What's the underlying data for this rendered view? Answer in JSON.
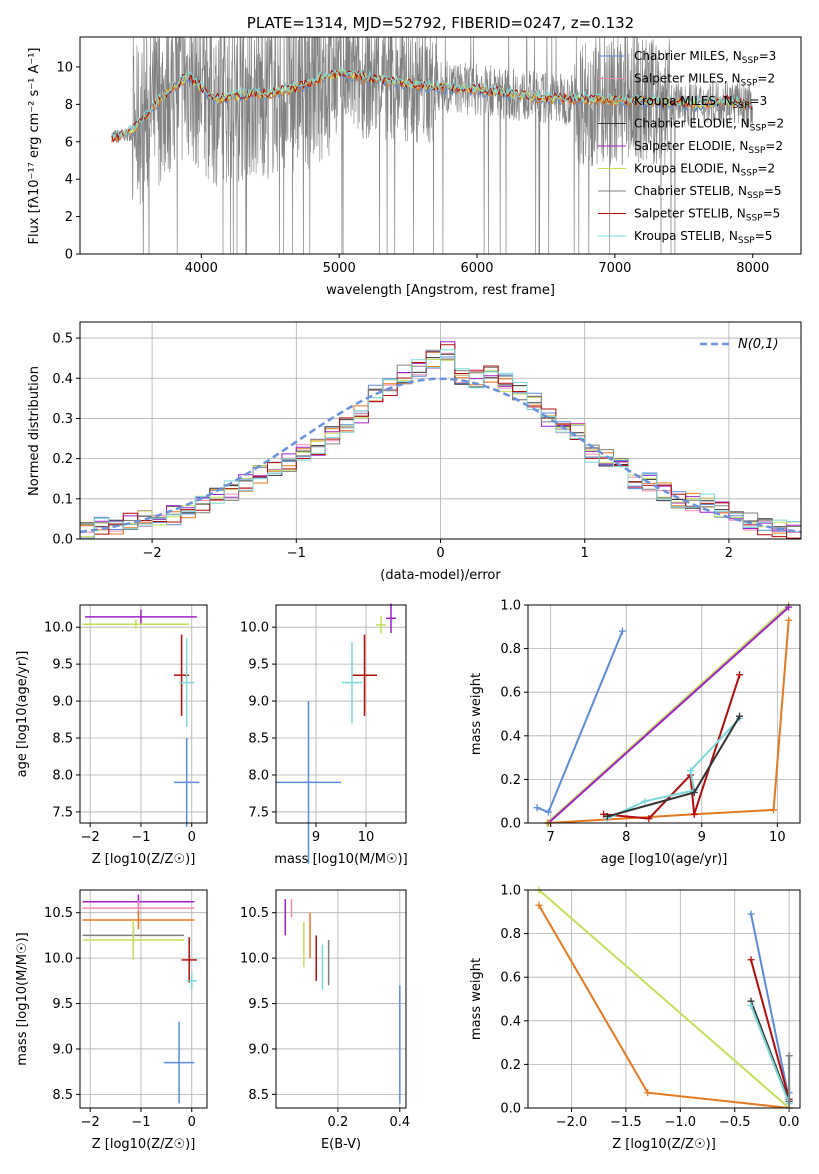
{
  "colors": {
    "chabrier_miles": "#5b8bd9",
    "salpeter_miles": "#f28bb4",
    "kroupa_miles": "#e6781e",
    "chabrier_elodie": "#333333",
    "salpeter_elodie": "#a020c8",
    "kroupa_elodie": "#c2e05a",
    "chabrier_stelib": "#808080",
    "salpeter_stelib": "#b20c0c",
    "kroupa_stelib": "#7ad8d8",
    "normal": "#6a92dd"
  },
  "legend_labels": [
    {
      "label": "Chabrier MILES, N",
      "nsub": "SSP",
      "nval": "=3",
      "color_key": "chabrier_miles"
    },
    {
      "label": "Salpeter MILES, N",
      "nsub": "SSP",
      "nval": "=2",
      "color_key": "salpeter_miles"
    },
    {
      "label": "Kroupa MILES, N",
      "nsub": "SSP",
      "nval": "=3",
      "color_key": "kroupa_miles"
    },
    {
      "label": "Chabrier ELODIE, N",
      "nsub": "SSP",
      "nval": "=2",
      "color_key": "chabrier_elodie"
    },
    {
      "label": "Salpeter ELODIE, N",
      "nsub": "SSP",
      "nval": "=2",
      "color_key": "salpeter_elodie"
    },
    {
      "label": "Kroupa ELODIE, N",
      "nsub": "SSP",
      "nval": "=2",
      "color_key": "kroupa_elodie"
    },
    {
      "label": "Chabrier STELIB, N",
      "nsub": "SSP",
      "nval": "=5",
      "color_key": "chabrier_stelib"
    },
    {
      "label": "Salpeter STELIB, N",
      "nsub": "SSP",
      "nval": "=5",
      "color_key": "salpeter_stelib"
    },
    {
      "label": "Kroupa STELIB, N",
      "nsub": "SSP",
      "nval": "=5",
      "color_key": "kroupa_stelib"
    }
  ],
  "chart_data": [
    {
      "type": "line",
      "title": "PLATE=1314, MJD=52792, FIBERID=0247, z=0.132",
      "xlabel": "wavelength [Angstrom, rest frame]",
      "ylabel": "Flux [fλ10⁻¹⁷ erg cm⁻² s⁻¹ A⁻¹]",
      "xlim": [
        3120,
        8350
      ],
      "ylim": [
        0,
        11.6
      ],
      "xticks": [
        4000,
        5000,
        6000,
        7000,
        8000
      ],
      "yticks": [
        0,
        2,
        4,
        6,
        8,
        10
      ],
      "legend_position": "upper right",
      "grid": false,
      "series": [
        {
          "name": "data",
          "color_key": "chabrier_stelib",
          "x": [
            3350,
            3500,
            3700,
            3900,
            4100,
            4300,
            4500,
            4700,
            4900,
            5000,
            5200,
            5400,
            5600,
            5800,
            6000,
            6200,
            6400,
            6600,
            6800,
            7000,
            7200,
            7400,
            7600,
            7800,
            8000
          ],
          "y": [
            6.3,
            6.4,
            8.2,
            9.4,
            8.1,
            8.4,
            8.5,
            8.8,
            9.4,
            9.6,
            9.3,
            9.2,
            9.0,
            8.9,
            8.8,
            8.6,
            8.4,
            8.3,
            8.2,
            8.2,
            8.2,
            8.0,
            8.0,
            8.2,
            7.9
          ]
        },
        {
          "name": "model",
          "color_key": "kroupa_stelib",
          "x": [
            3350,
            3500,
            3700,
            3900,
            4100,
            4300,
            4500,
            4700,
            4900,
            5000,
            5200,
            5400,
            5600,
            5800,
            6000,
            6200,
            6400,
            6600,
            6800,
            7000,
            7200,
            7400,
            7600,
            7800,
            8000
          ],
          "y": [
            6.2,
            6.6,
            8.3,
            9.5,
            8.3,
            8.5,
            8.6,
            8.9,
            9.5,
            9.7,
            9.4,
            9.2,
            9.0,
            8.9,
            8.8,
            8.6,
            8.4,
            8.3,
            8.3,
            8.2,
            8.2,
            8.1,
            8.0,
            8.2,
            7.9
          ]
        }
      ]
    },
    {
      "type": "line",
      "xlabel": "(data-model)/error",
      "ylabel": "Normed distribution",
      "xlim": [
        -2.5,
        2.5
      ],
      "ylim": [
        0,
        0.54
      ],
      "xticks": [
        -2,
        -1,
        0,
        1,
        2
      ],
      "yticks": [
        0.0,
        0.1,
        0.2,
        0.3,
        0.4,
        0.5
      ],
      "legend_position": "upper right",
      "legend_label": "N(0,1)",
      "grid": true,
      "bins": [
        -2.5,
        -2.4,
        -2.3,
        -2.2,
        -2.1,
        -2.0,
        -1.9,
        -1.8,
        -1.7,
        -1.6,
        -1.5,
        -1.4,
        -1.3,
        -1.2,
        -1.1,
        -1.0,
        -0.9,
        -0.8,
        -0.7,
        -0.6,
        -0.5,
        -0.4,
        -0.3,
        -0.2,
        -0.1,
        0.0,
        0.1,
        0.2,
        0.3,
        0.4,
        0.5,
        0.6,
        0.7,
        0.8,
        0.9,
        1.0,
        1.1,
        1.2,
        1.3,
        1.4,
        1.5,
        1.6,
        1.7,
        1.8,
        1.9,
        2.0,
        2.1,
        2.2,
        2.3,
        2.4
      ],
      "hist_base": [
        0.02,
        0.03,
        0.03,
        0.04,
        0.05,
        0.05,
        0.06,
        0.07,
        0.09,
        0.11,
        0.12,
        0.14,
        0.16,
        0.17,
        0.19,
        0.21,
        0.23,
        0.26,
        0.28,
        0.31,
        0.36,
        0.38,
        0.41,
        0.43,
        0.45,
        0.47,
        0.41,
        0.4,
        0.41,
        0.39,
        0.37,
        0.34,
        0.3,
        0.28,
        0.27,
        0.21,
        0.2,
        0.18,
        0.14,
        0.14,
        0.12,
        0.1,
        0.09,
        0.09,
        0.07,
        0.06,
        0.04,
        0.03,
        0.03,
        0.02
      ],
      "series": [
        {
          "name": "N(0,1)",
          "type": "line",
          "color_key": "normal",
          "mean": 0,
          "sigma": 1
        }
      ]
    },
    {
      "type": "scatter",
      "xlabel": "Z [log10(Z/Z☉)]",
      "ylabel": "age  [log10(age/yr)]",
      "xlim": [
        -2.2,
        0.3
      ],
      "ylim": [
        7.35,
        10.3
      ],
      "xticks": [
        -2,
        -1,
        0
      ],
      "yticks": [
        7.5,
        8.0,
        8.5,
        9.0,
        9.5,
        10.0
      ],
      "points": [
        {
          "color_key": "salpeter_elodie",
          "x": -1.0,
          "y": 10.14,
          "xerr": 1.1,
          "yerr": 0.1
        },
        {
          "color_key": "kroupa_elodie",
          "x": -1.1,
          "y": 10.04,
          "xerr": 1.05,
          "yerr": 0.06
        },
        {
          "color_key": "salpeter_stelib",
          "x": -0.2,
          "y": 9.35,
          "xerr": 0.15,
          "yerr": 0.55
        },
        {
          "color_key": "kroupa_stelib",
          "x": -0.1,
          "y": 9.25,
          "xerr": 0.15,
          "yerr": 0.6
        },
        {
          "color_key": "chabrier_miles",
          "x": -0.1,
          "y": 7.9,
          "xerr": 0.25,
          "yerr": 0.6
        }
      ]
    },
    {
      "type": "scatter",
      "xlabel": "mass [log10(M/M☉)]",
      "ylabel": "",
      "xlim": [
        8.2,
        10.8
      ],
      "ylim": [
        7.35,
        10.3
      ],
      "xticks": [
        9,
        10
      ],
      "yticks": [
        7.5,
        8.0,
        8.5,
        9.0,
        9.5,
        10.0
      ],
      "points": [
        {
          "color_key": "salpeter_elodie",
          "x": 10.5,
          "y": 10.12,
          "xerr": 0.1,
          "yerr": 0.2
        },
        {
          "color_key": "kroupa_elodie",
          "x": 10.3,
          "y": 10.03,
          "xerr": 0.1,
          "yerr": 0.12
        },
        {
          "color_key": "salpeter_stelib",
          "x": 9.97,
          "y": 9.35,
          "xerr": 0.25,
          "yerr": 0.55
        },
        {
          "color_key": "kroupa_stelib",
          "x": 9.72,
          "y": 9.25,
          "xerr": 0.2,
          "yerr": 0.55
        },
        {
          "color_key": "chabrier_miles",
          "x": 8.85,
          "y": 7.9,
          "xerr": 0.65,
          "yerr": 1.1
        }
      ]
    },
    {
      "type": "line",
      "xlabel": "age  [log10(age/yr)]",
      "ylabel": "mass weight",
      "xlim": [
        6.7,
        10.3
      ],
      "ylim": [
        0,
        1
      ],
      "xticks": [
        7,
        8,
        9,
        10
      ],
      "yticks": [
        0.0,
        0.2,
        0.4,
        0.6,
        0.8,
        1.0
      ],
      "grid": true,
      "series": [
        {
          "color_key": "chabrier_miles",
          "x": [
            6.82,
            6.97,
            7.95
          ],
          "y": [
            0.07,
            0.05,
            0.88
          ]
        },
        {
          "color_key": "kroupa_elodie",
          "x": [
            6.95,
            10.15
          ],
          "y": [
            0.0,
            1.0
          ]
        },
        {
          "color_key": "salpeter_elodie",
          "x": [
            6.97,
            10.15
          ],
          "y": [
            0.0,
            0.99
          ]
        },
        {
          "color_key": "kroupa_miles",
          "x": [
            6.97,
            8.9,
            9.95,
            10.15
          ],
          "y": [
            0.0,
            0.04,
            0.06,
            0.93
          ]
        },
        {
          "color_key": "salpeter_stelib",
          "x": [
            7.7,
            8.3,
            8.85,
            8.9,
            9.5
          ],
          "y": [
            0.04,
            0.02,
            0.22,
            0.04,
            0.68
          ]
        },
        {
          "color_key": "kroupa_stelib",
          "x": [
            7.75,
            8.25,
            8.9,
            8.85,
            9.5
          ],
          "y": [
            0.02,
            0.1,
            0.15,
            0.24,
            0.48
          ]
        },
        {
          "color_key": "chabrier_elodie",
          "x": [
            7.75,
            8.9,
            9.5
          ],
          "y": [
            0.03,
            0.14,
            0.49
          ]
        }
      ]
    },
    {
      "type": "scatter",
      "xlabel": "Z [log10(Z/Z☉)]",
      "ylabel": "mass [log10(M/M☉)]",
      "xlim": [
        -2.2,
        0.3
      ],
      "ylim": [
        8.35,
        10.75
      ],
      "xticks": [
        -2,
        -1,
        0
      ],
      "yticks": [
        8.5,
        9.0,
        9.5,
        10.0,
        10.5
      ],
      "points": [
        {
          "color_key": "salpeter_elodie",
          "x": -1.05,
          "y": 10.62,
          "xerr": 1.1,
          "yerr": 0.08
        },
        {
          "color_key": "salpeter_miles",
          "x": -1.05,
          "y": 10.55,
          "xerr": 1.1,
          "yerr": 0.08
        },
        {
          "color_key": "kroupa_miles",
          "x": -1.05,
          "y": 10.42,
          "xerr": 1.1,
          "yerr": 0.1
        },
        {
          "color_key": "chabrier_stelib",
          "x": -1.15,
          "y": 10.25,
          "xerr": 1.0,
          "yerr": 0.1
        },
        {
          "color_key": "kroupa_elodie",
          "x": -1.15,
          "y": 10.2,
          "xerr": 1.0,
          "yerr": 0.22
        },
        {
          "color_key": "salpeter_stelib",
          "x": -0.05,
          "y": 9.98,
          "xerr": 0.15,
          "yerr": 0.25
        },
        {
          "color_key": "kroupa_stelib",
          "x": 0.0,
          "y": 9.75,
          "xerr": 0.1,
          "yerr": 0.1
        },
        {
          "color_key": "chabrier_miles",
          "x": -0.25,
          "y": 8.85,
          "xerr": 0.3,
          "yerr": 0.45
        }
      ]
    },
    {
      "type": "scatter",
      "xlabel": "E(B-V)",
      "ylabel": "",
      "xlim": [
        0.0,
        0.42
      ],
      "ylim": [
        8.35,
        10.75
      ],
      "xticks": [
        0.2,
        0.4
      ],
      "yticks": [
        8.5,
        9.0,
        9.5,
        10.0,
        10.5
      ],
      "points": [
        {
          "color_key": "salpeter_elodie",
          "x": 0.03,
          "y": 10.45,
          "yerr": 0.2
        },
        {
          "color_key": "salpeter_miles",
          "x": 0.05,
          "y": 10.55,
          "yerr": 0.1
        },
        {
          "color_key": "kroupa_miles",
          "x": 0.11,
          "y": 10.25,
          "yerr": 0.25
        },
        {
          "color_key": "kroupa_elodie",
          "x": 0.09,
          "y": 10.15,
          "yerr": 0.25
        },
        {
          "color_key": "salpeter_stelib",
          "x": 0.13,
          "y": 10.0,
          "yerr": 0.25
        },
        {
          "color_key": "kroupa_stelib",
          "x": 0.15,
          "y": 9.9,
          "yerr": 0.25
        },
        {
          "color_key": "chabrier_stelib",
          "x": 0.17,
          "y": 9.95,
          "yerr": 0.25
        },
        {
          "color_key": "chabrier_miles",
          "x": 0.4,
          "y": 9.05,
          "yerr": 0.65
        }
      ]
    },
    {
      "type": "line",
      "xlabel": "Z [log10(Z/Z☉)]",
      "ylabel": "mass weight",
      "xlim": [
        -2.4,
        0.1
      ],
      "ylim": [
        0,
        1
      ],
      "xticks": [
        -2.0,
        -1.5,
        -1.0,
        -0.5,
        0.0
      ],
      "yticks": [
        0.0,
        0.2,
        0.4,
        0.6,
        0.8,
        1.0
      ],
      "grid": true,
      "series": [
        {
          "color_key": "kroupa_miles",
          "x": [
            -2.3,
            -1.3,
            0.0
          ],
          "y": [
            0.93,
            0.07,
            0.0
          ]
        },
        {
          "color_key": "kroupa_elodie",
          "x": [
            -2.3,
            0.0
          ],
          "y": [
            1.0,
            0.0
          ]
        },
        {
          "color_key": "chabrier_miles",
          "x": [
            -0.35,
            0.0,
            0.0
          ],
          "y": [
            0.89,
            0.04,
            0.07
          ]
        },
        {
          "color_key": "salpeter_stelib",
          "x": [
            -0.35,
            0.0
          ],
          "y": [
            0.68,
            0.04
          ]
        },
        {
          "color_key": "chabrier_elodie",
          "x": [
            -0.35,
            0.0
          ],
          "y": [
            0.49,
            0.03
          ]
        },
        {
          "color_key": "kroupa_stelib",
          "x": [
            -0.35,
            0.0,
            0.0
          ],
          "y": [
            0.47,
            0.02,
            0.24
          ]
        },
        {
          "color_key": "chabrier_stelib",
          "x": [
            0.0,
            0.0
          ],
          "y": [
            0.0,
            0.24
          ]
        }
      ]
    }
  ],
  "panel1": {
    "title": "PLATE=1314, MJD=52792, FIBERID=0247, z=0.132",
    "xlabel": "wavelength [Angstrom, rest frame]",
    "ylabel": "Flux [fλ10⁻¹⁷ erg cm⁻² s⁻¹ A⁻¹]"
  },
  "panel2": {
    "xlabel": "(data-model)/error",
    "ylabel": "Normed distribution",
    "legend_label": "N(0,1)"
  }
}
